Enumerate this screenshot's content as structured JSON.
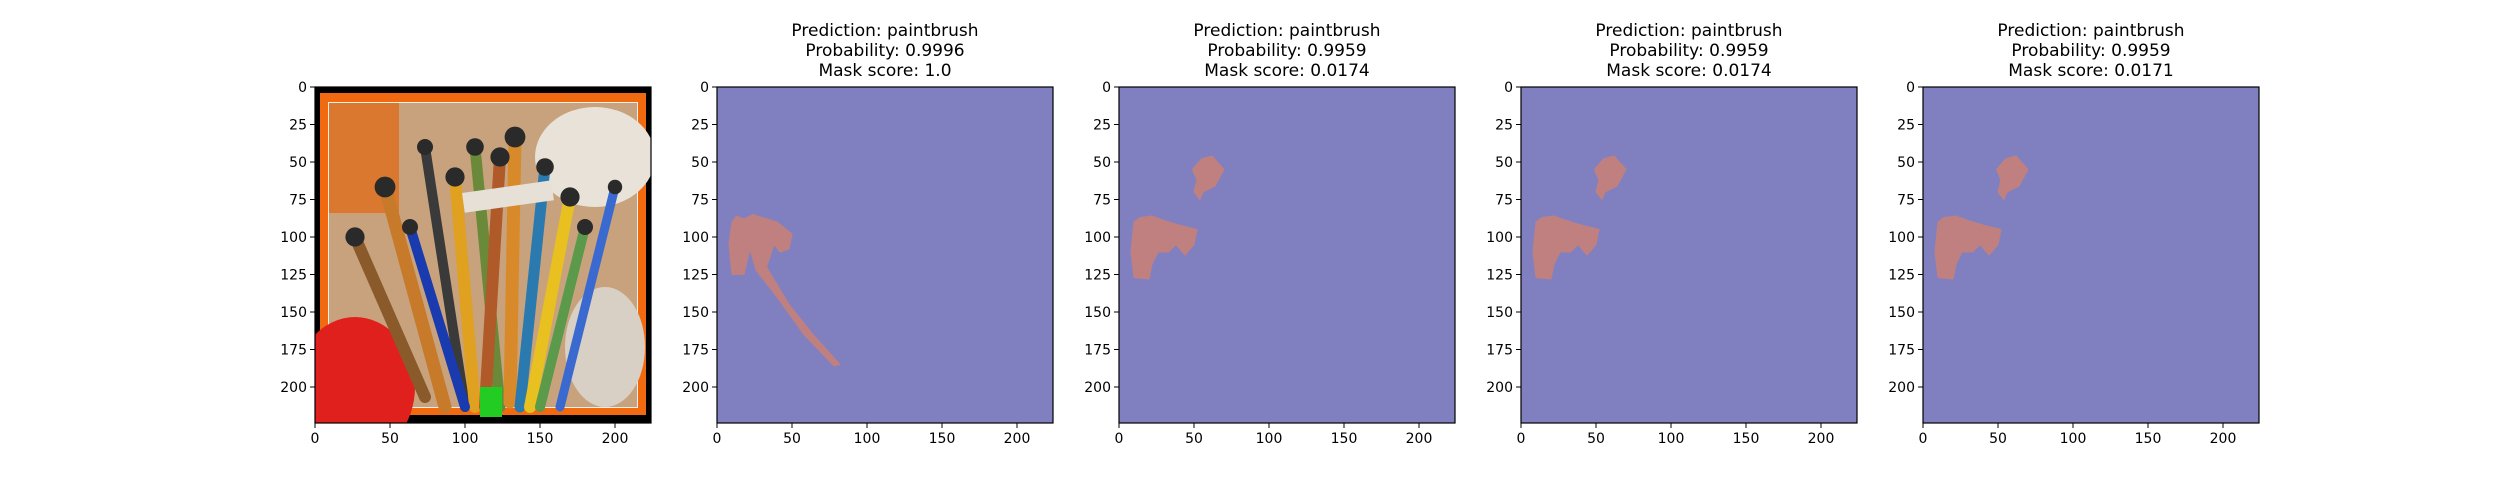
{
  "figure": {
    "background": "#ffffff",
    "mask_background_color": "#8080c0",
    "mask_foreground_color": "#c08080",
    "frame_outer_color": "#000000",
    "frame_inner_color": "#f26a10"
  },
  "chart_data": [
    {
      "type": "image",
      "panel": 0,
      "title_lines": [],
      "content": "painting of paintbrushes in a bucket, orange frame",
      "xlim": [
        0,
        224
      ],
      "ylim": [
        224,
        0
      ],
      "xticks": [
        0,
        50,
        100,
        150,
        200
      ],
      "yticks": [
        0,
        25,
        50,
        75,
        100,
        125,
        150,
        175,
        200
      ]
    },
    {
      "type": "heatmap",
      "panel": 1,
      "title_lines": [
        "Prediction: paintbrush",
        "Probability: 0.9996",
        "Mask score: 1.0"
      ],
      "prediction": "paintbrush",
      "probability": 0.9996,
      "mask_score": 1.0,
      "xlim": [
        0,
        224
      ],
      "ylim": [
        224,
        0
      ],
      "xticks": [
        0,
        50,
        100,
        150,
        200
      ],
      "yticks": [
        0,
        25,
        50,
        75,
        100,
        125,
        150,
        175,
        200
      ],
      "mask_regions": [
        [
          [
            10,
            90
          ],
          [
            13,
            86
          ],
          [
            18,
            88
          ],
          [
            24,
            85
          ],
          [
            30,
            87
          ],
          [
            40,
            90
          ],
          [
            50,
            98
          ],
          [
            48,
            108
          ],
          [
            42,
            110
          ],
          [
            38,
            105
          ],
          [
            33,
            120
          ],
          [
            48,
            145
          ],
          [
            64,
            165
          ],
          [
            82,
            185
          ],
          [
            78,
            186
          ],
          [
            58,
            165
          ],
          [
            40,
            140
          ],
          [
            26,
            122
          ],
          [
            22,
            108
          ],
          [
            18,
            125
          ],
          [
            10,
            125
          ],
          [
            8,
            105
          ]
        ]
      ]
    },
    {
      "type": "heatmap",
      "panel": 2,
      "title_lines": [
        "Prediction: paintbrush",
        "Probability: 0.9959",
        "Mask score: 0.0174"
      ],
      "prediction": "paintbrush",
      "probability": 0.9959,
      "mask_score": 0.0174,
      "xlim": [
        0,
        224
      ],
      "ylim": [
        224,
        0
      ],
      "xticks": [
        0,
        50,
        100,
        150,
        200
      ],
      "yticks": [
        0,
        25,
        50,
        75,
        100,
        125,
        150,
        175,
        200
      ],
      "mask_regions": [
        [
          [
            10,
            90
          ],
          [
            14,
            87
          ],
          [
            22,
            86
          ],
          [
            30,
            89
          ],
          [
            40,
            92
          ],
          [
            52,
            95
          ],
          [
            50,
            105
          ],
          [
            44,
            112
          ],
          [
            38,
            105
          ],
          [
            33,
            110
          ],
          [
            26,
            110
          ],
          [
            22,
            118
          ],
          [
            20,
            128
          ],
          [
            10,
            127
          ],
          [
            8,
            110
          ]
        ],
        [
          [
            49,
            55
          ],
          [
            55,
            48
          ],
          [
            62,
            46
          ],
          [
            70,
            55
          ],
          [
            64,
            66
          ],
          [
            56,
            70
          ],
          [
            54,
            75
          ],
          [
            50,
            70
          ],
          [
            52,
            62
          ]
        ]
      ]
    },
    {
      "type": "heatmap",
      "panel": 3,
      "title_lines": [
        "Prediction: paintbrush",
        "Probability: 0.9959",
        "Mask score: 0.0174"
      ],
      "prediction": "paintbrush",
      "probability": 0.9959,
      "mask_score": 0.0174,
      "xlim": [
        0,
        224
      ],
      "ylim": [
        224,
        0
      ],
      "xticks": [
        0,
        50,
        100,
        150,
        200
      ],
      "yticks": [
        0,
        25,
        50,
        75,
        100,
        125,
        150,
        175,
        200
      ],
      "mask_regions": [
        [
          [
            10,
            90
          ],
          [
            14,
            87
          ],
          [
            22,
            86
          ],
          [
            30,
            89
          ],
          [
            40,
            92
          ],
          [
            52,
            95
          ],
          [
            50,
            105
          ],
          [
            44,
            112
          ],
          [
            38,
            105
          ],
          [
            33,
            110
          ],
          [
            26,
            110
          ],
          [
            22,
            118
          ],
          [
            20,
            128
          ],
          [
            10,
            127
          ],
          [
            8,
            110
          ]
        ],
        [
          [
            49,
            55
          ],
          [
            55,
            48
          ],
          [
            62,
            46
          ],
          [
            70,
            55
          ],
          [
            64,
            66
          ],
          [
            56,
            70
          ],
          [
            54,
            75
          ],
          [
            50,
            70
          ],
          [
            52,
            62
          ]
        ]
      ]
    },
    {
      "type": "heatmap",
      "panel": 4,
      "title_lines": [
        "Prediction: paintbrush",
        "Probability: 0.9959",
        "Mask score: 0.0171"
      ],
      "prediction": "paintbrush",
      "probability": 0.9959,
      "mask_score": 0.0171,
      "xlim": [
        0,
        224
      ],
      "ylim": [
        224,
        0
      ],
      "xticks": [
        0,
        50,
        100,
        150,
        200
      ],
      "yticks": [
        0,
        25,
        50,
        75,
        100,
        125,
        150,
        175,
        200
      ],
      "mask_regions": [
        [
          [
            10,
            90
          ],
          [
            14,
            87
          ],
          [
            22,
            86
          ],
          [
            30,
            89
          ],
          [
            40,
            92
          ],
          [
            52,
            95
          ],
          [
            50,
            105
          ],
          [
            44,
            112
          ],
          [
            38,
            105
          ],
          [
            33,
            110
          ],
          [
            26,
            110
          ],
          [
            22,
            118
          ],
          [
            20,
            128
          ],
          [
            10,
            127
          ],
          [
            8,
            110
          ]
        ],
        [
          [
            49,
            55
          ],
          [
            55,
            48
          ],
          [
            62,
            46
          ],
          [
            70,
            55
          ],
          [
            64,
            66
          ],
          [
            56,
            70
          ],
          [
            54,
            75
          ],
          [
            50,
            70
          ],
          [
            52,
            62
          ]
        ]
      ]
    }
  ]
}
